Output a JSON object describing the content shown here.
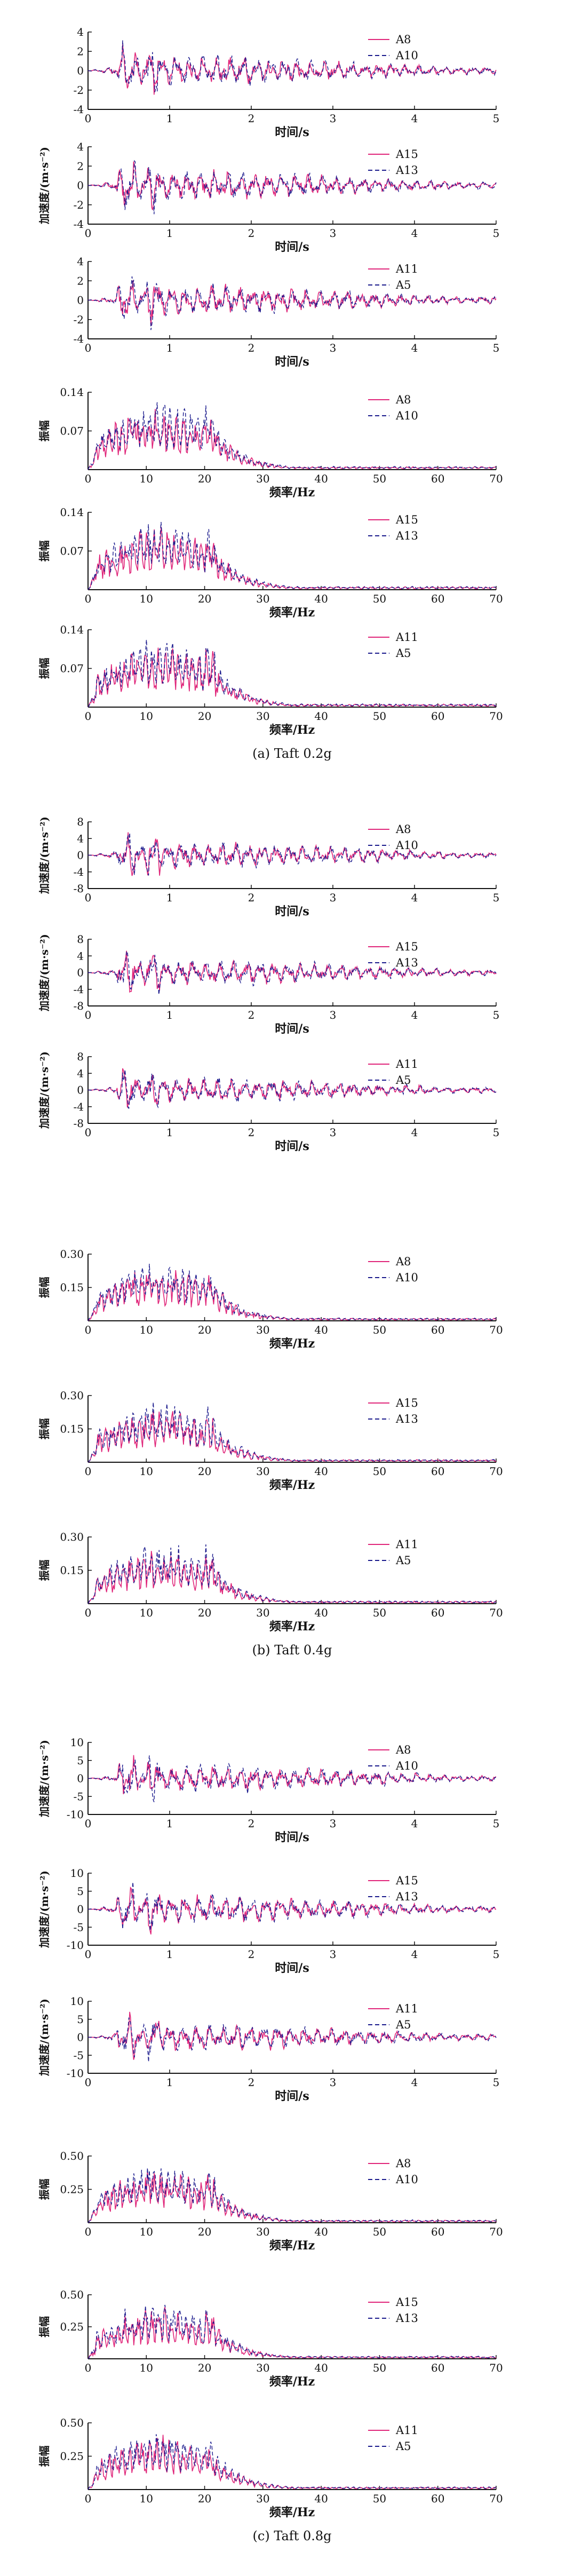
{
  "colors": {
    "series_a": "#e0267a",
    "series_b": "#1a1a8c",
    "axis": "#111111"
  },
  "chart_data": [
    {
      "type": "line",
      "kind": "time",
      "group": "a",
      "title": "",
      "xlabel": "时间/s",
      "ylabel": "",
      "xlim": [
        0,
        5
      ],
      "ylim": [
        -4,
        4
      ],
      "xticks": [
        "0",
        "1",
        "2",
        "3",
        "4",
        "5"
      ],
      "yticks": [
        "4",
        "2",
        "0",
        "-2",
        "-4"
      ],
      "legend": [
        "A8",
        "A10"
      ],
      "seed": 11
    },
    {
      "type": "line",
      "kind": "time",
      "group": "a",
      "title": "",
      "xlabel": "时间/s",
      "ylabel": "加速度/(m·s⁻²)",
      "xlim": [
        0,
        5
      ],
      "ylim": [
        -4,
        4
      ],
      "xticks": [
        "0",
        "1",
        "2",
        "3",
        "4",
        "5"
      ],
      "yticks": [
        "4",
        "2",
        "0",
        "-2",
        "-4"
      ],
      "legend": [
        "A15",
        "A13"
      ],
      "seed": 12
    },
    {
      "type": "line",
      "kind": "time",
      "group": "a",
      "title": "",
      "xlabel": "时间/s",
      "ylabel": "",
      "xlim": [
        0,
        5
      ],
      "ylim": [
        -4,
        4
      ],
      "xticks": [
        "0",
        "1",
        "2",
        "3",
        "4",
        "5"
      ],
      "yticks": [
        "4",
        "2",
        "0",
        "-2",
        "-4"
      ],
      "legend": [
        "A11",
        "A5"
      ],
      "seed": 13
    },
    {
      "type": "line",
      "kind": "freq",
      "group": "a",
      "title": "",
      "xlabel": "频率/Hz",
      "ylabel": "振幅",
      "xlim": [
        0,
        70
      ],
      "ylim": [
        0,
        0.14
      ],
      "xticks": [
        "0",
        "10",
        "20",
        "30",
        "40",
        "50",
        "60",
        "70"
      ],
      "yticks": [
        "0.14",
        "0.07"
      ],
      "legend": [
        "A8",
        "A10"
      ],
      "seed": 14
    },
    {
      "type": "line",
      "kind": "freq",
      "group": "a",
      "title": "",
      "xlabel": "频率/Hz",
      "ylabel": "振幅",
      "xlim": [
        0,
        70
      ],
      "ylim": [
        0,
        0.14
      ],
      "xticks": [
        "0",
        "10",
        "20",
        "30",
        "40",
        "50",
        "60",
        "70"
      ],
      "yticks": [
        "0.14",
        "0.07"
      ],
      "legend": [
        "A15",
        "A13"
      ],
      "seed": 15
    },
    {
      "type": "line",
      "kind": "freq",
      "group": "a",
      "title": "(a) Taft 0.2g",
      "xlabel": "频率/Hz",
      "ylabel": "振幅",
      "xlim": [
        0,
        70
      ],
      "ylim": [
        0,
        0.14
      ],
      "xticks": [
        "0",
        "10",
        "20",
        "30",
        "40",
        "50",
        "60",
        "70"
      ],
      "yticks": [
        "0.14",
        "0.07"
      ],
      "legend": [
        "A11",
        "A5"
      ],
      "seed": 16
    },
    {
      "type": "line",
      "kind": "time",
      "group": "b",
      "title": "",
      "xlabel": "时间/s",
      "ylabel": "加速度/(m·s⁻²)",
      "xlim": [
        0,
        5
      ],
      "ylim": [
        -8,
        8
      ],
      "xticks": [
        "0",
        "1",
        "2",
        "3",
        "4",
        "5"
      ],
      "yticks": [
        "8",
        "4",
        "0",
        "-4",
        "-8"
      ],
      "legend": [
        "A8",
        "A10"
      ],
      "seed": 21
    },
    {
      "type": "line",
      "kind": "time",
      "group": "b",
      "title": "",
      "xlabel": "时间/s",
      "ylabel": "加速度/(m·s⁻²)",
      "xlim": [
        0,
        5
      ],
      "ylim": [
        -8,
        8
      ],
      "xticks": [
        "0",
        "1",
        "2",
        "3",
        "4",
        "5"
      ],
      "yticks": [
        "8",
        "4",
        "0",
        "-4",
        "-8"
      ],
      "legend": [
        "A15",
        "A13"
      ],
      "seed": 22
    },
    {
      "type": "line",
      "kind": "time",
      "group": "b",
      "title": "",
      "xlabel": "时间/s",
      "ylabel": "加速度/(m·s⁻²)",
      "xlim": [
        0,
        5
      ],
      "ylim": [
        -8,
        8
      ],
      "xticks": [
        "0",
        "1",
        "2",
        "3",
        "4",
        "5"
      ],
      "yticks": [
        "8",
        "4",
        "0",
        "-4",
        "-8"
      ],
      "legend": [
        "A11",
        "A5"
      ],
      "seed": 23
    },
    {
      "type": "line",
      "kind": "freq",
      "group": "b",
      "title": "",
      "xlabel": "频率/Hz",
      "ylabel": "振幅",
      "xlim": [
        0,
        70
      ],
      "ylim": [
        0,
        0.3
      ],
      "xticks": [
        "0",
        "10",
        "20",
        "30",
        "40",
        "50",
        "60",
        "70"
      ],
      "yticks": [
        "0.30",
        "0.15"
      ],
      "legend": [
        "A8",
        "A10"
      ],
      "seed": 24
    },
    {
      "type": "line",
      "kind": "freq",
      "group": "b",
      "title": "",
      "xlabel": "频率/Hz",
      "ylabel": "振幅",
      "xlim": [
        0,
        70
      ],
      "ylim": [
        0,
        0.3
      ],
      "xticks": [
        "0",
        "10",
        "20",
        "30",
        "40",
        "50",
        "60",
        "70"
      ],
      "yticks": [
        "0.30",
        "0.15"
      ],
      "legend": [
        "A15",
        "A13"
      ],
      "seed": 25
    },
    {
      "type": "line",
      "kind": "freq",
      "group": "b",
      "title": "(b) Taft 0.4g",
      "xlabel": "频率/Hz",
      "ylabel": "振幅",
      "xlim": [
        0,
        70
      ],
      "ylim": [
        0,
        0.3
      ],
      "xticks": [
        "0",
        "10",
        "20",
        "30",
        "40",
        "50",
        "60",
        "70"
      ],
      "yticks": [
        "0.30",
        "0.15"
      ],
      "legend": [
        "A11",
        "A5"
      ],
      "seed": 26
    },
    {
      "type": "line",
      "kind": "time",
      "group": "c",
      "title": "",
      "xlabel": "时间/s",
      "ylabel": "加速度/(m·s⁻²)",
      "xlim": [
        0,
        5
      ],
      "ylim": [
        -10,
        10
      ],
      "xticks": [
        "0",
        "1",
        "2",
        "3",
        "4",
        "5"
      ],
      "yticks": [
        "10",
        "5",
        "0",
        "-5",
        "-10"
      ],
      "legend": [
        "A8",
        "A10"
      ],
      "seed": 31
    },
    {
      "type": "line",
      "kind": "time",
      "group": "c",
      "title": "",
      "xlabel": "时间/s",
      "ylabel": "加速度/(m·s⁻²)",
      "xlim": [
        0,
        5
      ],
      "ylim": [
        -10,
        10
      ],
      "xticks": [
        "0",
        "1",
        "2",
        "3",
        "4",
        "5"
      ],
      "yticks": [
        "10",
        "5",
        "0",
        "-5",
        "-10"
      ],
      "legend": [
        "A15",
        "A13"
      ],
      "seed": 32
    },
    {
      "type": "line",
      "kind": "time",
      "group": "c",
      "title": "",
      "xlabel": "时间/s",
      "ylabel": "加速度/(m·s⁻²)",
      "xlim": [
        0,
        5
      ],
      "ylim": [
        -10,
        10
      ],
      "xticks": [
        "0",
        "1",
        "2",
        "3",
        "4",
        "5"
      ],
      "yticks": [
        "10",
        "5",
        "0",
        "-5",
        "-10"
      ],
      "legend": [
        "A11",
        "A5"
      ],
      "seed": 33
    },
    {
      "type": "line",
      "kind": "freq",
      "group": "c",
      "title": "",
      "xlabel": "频率/Hz",
      "ylabel": "振幅",
      "xlim": [
        0,
        70
      ],
      "ylim": [
        0,
        0.5
      ],
      "xticks": [
        "0",
        "10",
        "20",
        "30",
        "40",
        "50",
        "60",
        "70"
      ],
      "yticks": [
        "0.50",
        "0.25"
      ],
      "legend": [
        "A8",
        "A10"
      ],
      "seed": 34
    },
    {
      "type": "line",
      "kind": "freq",
      "group": "c",
      "title": "",
      "xlabel": "频率/Hz",
      "ylabel": "振幅",
      "xlim": [
        0,
        70
      ],
      "ylim": [
        0,
        0.5
      ],
      "xticks": [
        "0",
        "10",
        "20",
        "30",
        "40",
        "50",
        "60",
        "70"
      ],
      "yticks": [
        "0.50",
        "0.25"
      ],
      "legend": [
        "A15",
        "A13"
      ],
      "seed": 35
    },
    {
      "type": "line",
      "kind": "freq",
      "group": "c",
      "title": "(c) Taft 0.8g",
      "xlabel": "频率/Hz",
      "ylabel": "振幅",
      "xlim": [
        0,
        70
      ],
      "ylim": [
        0,
        0.5
      ],
      "xticks": [
        "0",
        "10",
        "20",
        "30",
        "40",
        "50",
        "60",
        "70"
      ],
      "yticks": [
        "0.50",
        "0.25"
      ],
      "legend": [
        "A11",
        "A5"
      ],
      "seed": 36
    }
  ]
}
